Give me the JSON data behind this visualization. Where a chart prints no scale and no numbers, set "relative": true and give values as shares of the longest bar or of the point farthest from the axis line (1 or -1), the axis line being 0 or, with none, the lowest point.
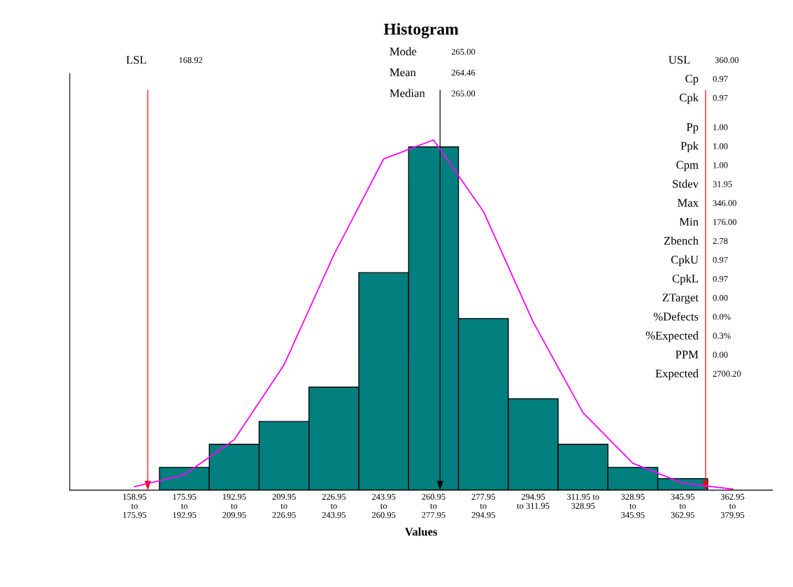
{
  "chart_data": {
    "type": "bar",
    "title": "Histogram",
    "xlabel": "Values",
    "relative": true,
    "categories": [
      "158.95\nto\n175.95",
      "175.95\nto\n192.95",
      "192.95\nto\n209.95",
      "209.95\nto\n226.95",
      "226.95\nto\n243.95",
      "243.95\nto\n260.95",
      "260.95\nto\n277.95",
      "277.95\nto\n294.95",
      "294.95\nto 311.95",
      "311.95 to\n328.95",
      "328.95\nto\n345.95",
      "345.95\nto\n362.95",
      "362.95\nto\n379.95"
    ],
    "series": [
      {
        "color": "#007f7f",
        "values": [
          0,
          0.065,
          0.131,
          0.196,
          0.294,
          0.621,
          0.98,
          0.49,
          0.261,
          0.131,
          0.065,
          0.033,
          0
        ]
      },
      {
        "type": "line",
        "color": "#ff00ff",
        "values": [
          0.01,
          0.044,
          0.144,
          0.358,
          0.672,
          0.946,
          1,
          0.796,
          0.48,
          0.221,
          0.077,
          0.02,
          0.003
        ]
      }
    ],
    "annotations": [
      "LSL 168.92",
      "Mode 265.00",
      "Mean 264.46",
      "Median 265.00",
      "USL 360.00",
      "Cp 0.97",
      "Cpk 0.97",
      "Pp 1.00",
      "Ppk 1.00",
      "Cpm 1.00",
      "Stdev 31.95",
      "Max 346.00",
      "Min 176.00",
      "Zbench 2.78",
      "CpkU 0.97",
      "CpkL 0.97",
      "ZTarget 0.00",
      "%Defects 0.0%",
      "%Expected 0.3%",
      "PPM 0.00",
      "Expected 2700.20"
    ],
    "grid": false,
    "legend": false
  }
}
